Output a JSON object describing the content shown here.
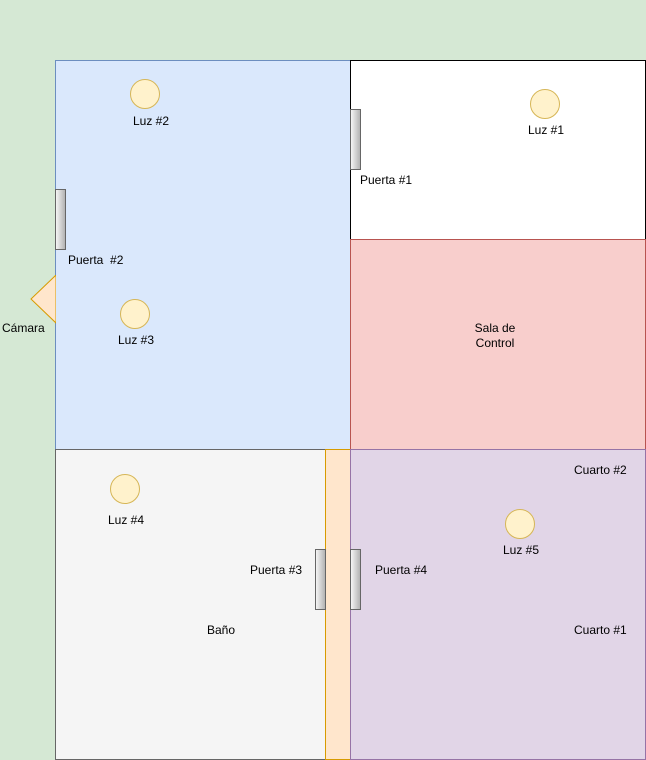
{
  "colors": {
    "outside": "#d5e8d4",
    "main_room": "#dae8fc",
    "control_room": "#f8cecc",
    "bathroom": "#f5f5f5",
    "bedrooms": "#e1d5e7",
    "hallway": "#ffe6cc",
    "light_fill": "#fff2cc"
  },
  "rooms": {
    "control_room_title": [
      "Sala de",
      "Control"
    ],
    "bathroom": "Baño",
    "bedroom_1": "Cuarto #1",
    "bedroom_2": "Cuarto #2"
  },
  "lights": {
    "l1": "Luz #1",
    "l2": "Luz #2",
    "l3": "Luz #3",
    "l4": "Luz #4",
    "l5": "Luz #5"
  },
  "doors": {
    "d1": "Puerta #1",
    "d2": "Puerta  #2",
    "d3": "Puerta #3",
    "d4": "Puerta #4"
  },
  "camera": {
    "label": "Cámara",
    "icon": "triangle-camera-icon"
  }
}
